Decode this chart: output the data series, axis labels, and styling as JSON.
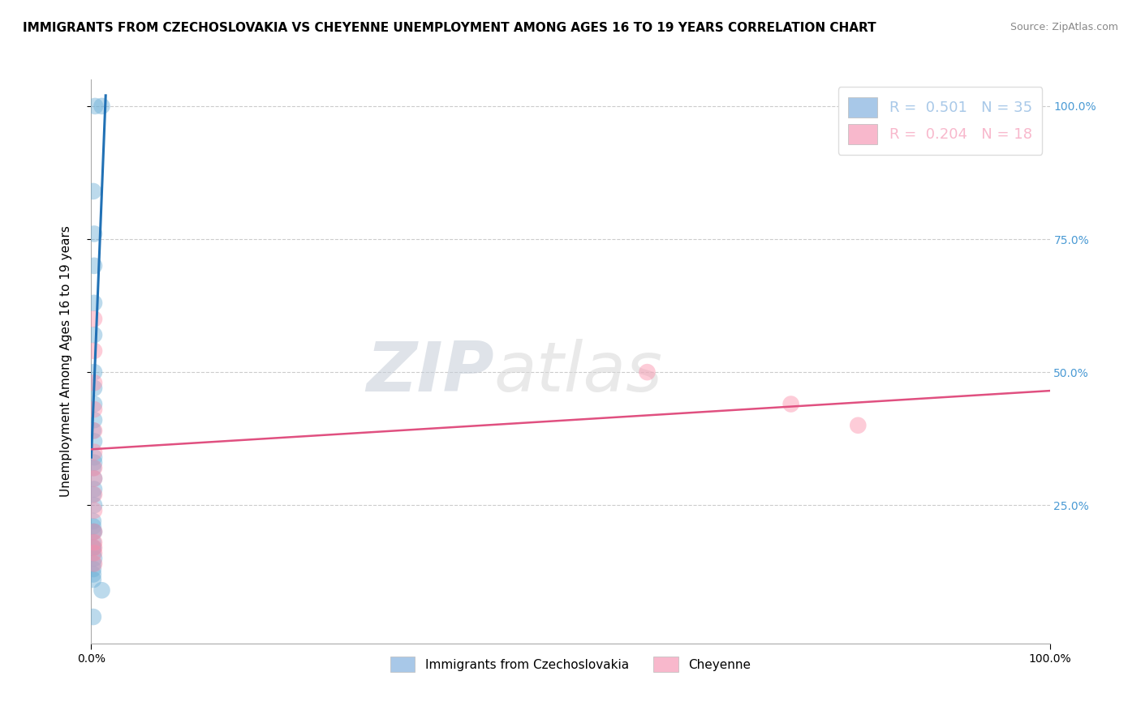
{
  "title": "IMMIGRANTS FROM CZECHOSLOVAKIA VS CHEYENNE UNEMPLOYMENT AMONG AGES 16 TO 19 YEARS CORRELATION CHART",
  "source": "Source: ZipAtlas.com",
  "ylabel": "Unemployment Among Ages 16 to 19 years",
  "xlim": [
    0.0,
    1.0
  ],
  "ylim": [
    -0.01,
    1.05
  ],
  "ytick_values": [
    0.25,
    0.5,
    0.75,
    1.0
  ],
  "ytick_right_labels": [
    "25.0%",
    "50.0%",
    "75.0%",
    "100.0%"
  ],
  "legend_upper": [
    {
      "label": "R =  0.501   N = 35",
      "color": "#a8c8e8"
    },
    {
      "label": "R =  0.204   N = 18",
      "color": "#f8b8cc"
    }
  ],
  "legend_lower": [
    {
      "label": "Immigrants from Czechoslovakia",
      "color": "#a8c8e8"
    },
    {
      "label": "Cheyenne",
      "color": "#f8b8cc"
    }
  ],
  "blue_scatter_x": [
    0.004,
    0.011,
    0.002,
    0.003,
    0.003,
    0.003,
    0.003,
    0.003,
    0.003,
    0.003,
    0.003,
    0.002,
    0.003,
    0.003,
    0.003,
    0.002,
    0.003,
    0.003,
    0.002,
    0.003,
    0.002,
    0.002,
    0.002,
    0.003,
    0.002,
    0.002,
    0.002,
    0.002,
    0.003,
    0.002,
    0.002,
    0.002,
    0.002,
    0.011,
    0.002
  ],
  "blue_scatter_y": [
    1.0,
    1.0,
    0.84,
    0.76,
    0.7,
    0.63,
    0.57,
    0.5,
    0.47,
    0.44,
    0.41,
    0.39,
    0.37,
    0.34,
    0.33,
    0.32,
    0.3,
    0.28,
    0.27,
    0.25,
    0.22,
    0.21,
    0.2,
    0.2,
    0.18,
    0.17,
    0.17,
    0.16,
    0.15,
    0.14,
    0.13,
    0.12,
    0.11,
    0.09,
    0.04
  ],
  "pink_scatter_x": [
    0.003,
    0.003,
    0.003,
    0.003,
    0.003,
    0.003,
    0.003,
    0.003,
    0.003,
    0.003,
    0.003,
    0.003,
    0.003,
    0.58,
    0.73,
    0.8,
    0.003,
    0.003
  ],
  "pink_scatter_y": [
    0.6,
    0.54,
    0.48,
    0.43,
    0.39,
    0.35,
    0.32,
    0.3,
    0.27,
    0.24,
    0.2,
    0.18,
    0.17,
    0.5,
    0.44,
    0.4,
    0.16,
    0.14
  ],
  "blue_line_x": [
    0.0,
    0.015
  ],
  "blue_line_y": [
    0.34,
    1.02
  ],
  "pink_line_x": [
    0.0,
    1.0
  ],
  "pink_line_y": [
    0.355,
    0.465
  ],
  "watermark_zip": "ZIP",
  "watermark_atlas": "atlas",
  "scatter_size": 220,
  "scatter_alpha": 0.45,
  "blue_scatter_color": "#6baed6",
  "pink_scatter_color": "#fc8faa",
  "blue_line_color": "#2171b5",
  "pink_line_color": "#e05080",
  "grid_color": "#cccccc",
  "title_fontsize": 11,
  "axis_label_fontsize": 11
}
